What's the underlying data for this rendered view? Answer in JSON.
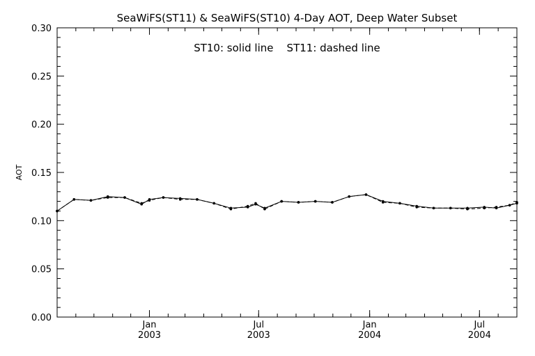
{
  "chart_data": {
    "type": "line",
    "title": "SeaWiFS(ST11) & SeaWiFS(ST10) 4-Day AOT, Deep Water Subset",
    "annotation": "ST10: solid line    ST11: dashed line",
    "ylabel": "AOT",
    "xlabel": "",
    "ylim": [
      0.0,
      0.3
    ],
    "yticks": [
      "0.00",
      "0.05",
      "0.10",
      "0.15",
      "0.20",
      "0.25",
      "0.30"
    ],
    "xlim": [
      "2002-08-01",
      "2004-09-01"
    ],
    "xticks": [
      {
        "date": "2003-01-01",
        "month": "Jan",
        "year": "2003"
      },
      {
        "date": "2003-07-01",
        "month": "Jul",
        "year": "2003"
      },
      {
        "date": "2004-01-01",
        "month": "Jan",
        "year": "2004"
      },
      {
        "date": "2004-07-01",
        "month": "Jul",
        "year": "2004"
      }
    ],
    "grid": false,
    "series": [
      {
        "name": "ST10",
        "line_style": "solid",
        "x": [
          "2002-08-01",
          "2002-08-29",
          "2002-09-26",
          "2002-10-24",
          "2002-11-21",
          "2002-12-19",
          "2003-01-01",
          "2003-01-24",
          "2003-02-21",
          "2003-03-21",
          "2003-04-18",
          "2003-05-16",
          "2003-06-13",
          "2003-06-26",
          "2003-07-11",
          "2003-08-08",
          "2003-09-05",
          "2003-10-03",
          "2003-10-31",
          "2003-11-28",
          "2003-12-26",
          "2004-01-23",
          "2004-02-20",
          "2004-03-19",
          "2004-04-16",
          "2004-05-14",
          "2004-06-11",
          "2004-07-09",
          "2004-07-29",
          "2004-08-20",
          "2004-09-01"
        ],
        "values": [
          0.11,
          0.122,
          0.121,
          0.125,
          0.124,
          0.117,
          0.122,
          0.124,
          0.123,
          0.122,
          0.118,
          0.113,
          0.114,
          0.117,
          0.113,
          0.12,
          0.119,
          0.12,
          0.119,
          0.125,
          0.127,
          0.12,
          0.118,
          0.115,
          0.113,
          0.113,
          0.113,
          0.114,
          0.113,
          0.116,
          0.118
        ]
      },
      {
        "name": "ST11",
        "line_style": "dashed",
        "x": [
          "2002-08-01",
          "2002-08-29",
          "2002-09-26",
          "2002-10-24",
          "2002-11-21",
          "2002-12-19",
          "2003-01-01",
          "2003-01-24",
          "2003-02-21",
          "2003-03-21",
          "2003-04-18",
          "2003-05-16",
          "2003-06-13",
          "2003-06-26",
          "2003-07-11",
          "2003-08-08",
          "2003-09-05",
          "2003-10-03",
          "2003-10-31",
          "2003-11-28",
          "2003-12-26",
          "2004-01-23",
          "2004-02-20",
          "2004-03-19",
          "2004-04-16",
          "2004-05-14",
          "2004-06-11",
          "2004-07-09",
          "2004-07-29",
          "2004-08-20",
          "2004-09-01"
        ],
        "values": [
          0.11,
          0.122,
          0.121,
          0.124,
          0.124,
          0.118,
          0.121,
          0.124,
          0.122,
          0.122,
          0.118,
          0.112,
          0.115,
          0.118,
          0.112,
          0.12,
          0.119,
          0.12,
          0.119,
          0.125,
          0.127,
          0.119,
          0.118,
          0.114,
          0.113,
          0.113,
          0.112,
          0.113,
          0.114,
          0.116,
          0.119
        ]
      }
    ]
  }
}
